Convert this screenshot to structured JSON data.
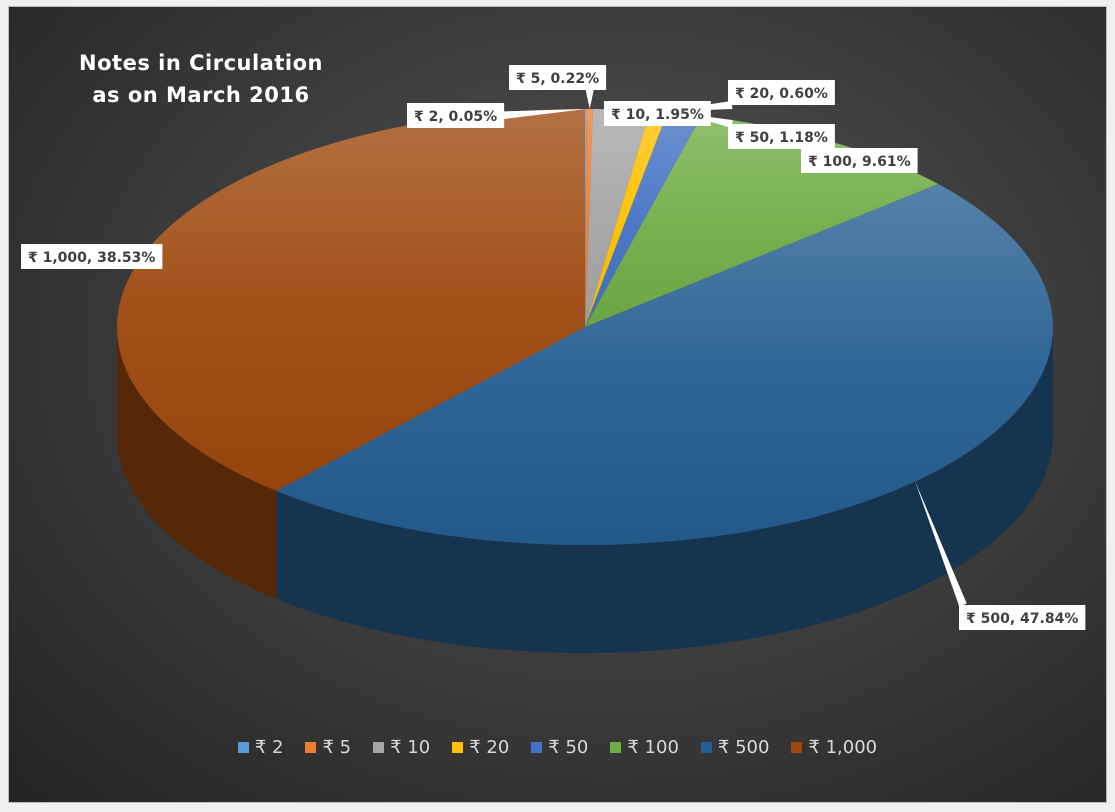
{
  "chart_data": {
    "type": "pie",
    "title_lines": [
      "Notes in Circulation",
      "as on March 2016"
    ],
    "legend_position": "bottom",
    "slices": [
      {
        "name": "₹ 2",
        "value": 0.05,
        "label": "₹ 2, 0.05%",
        "color": "#5b9bd5"
      },
      {
        "name": "₹ 5",
        "value": 0.22,
        "label": "₹ 5, 0.22%",
        "color": "#ed7d31"
      },
      {
        "name": "₹ 10",
        "value": 1.95,
        "label": "₹ 10, 1.95%",
        "color": "#a5a5a5"
      },
      {
        "name": "₹ 20",
        "value": 0.6,
        "label": "₹ 20, 0.60%",
        "color": "#ffc000"
      },
      {
        "name": "₹ 50",
        "value": 1.18,
        "label": "₹ 50, 1.18%",
        "color": "#4472c4"
      },
      {
        "name": "₹ 100",
        "value": 9.61,
        "label": "₹ 100, 9.61%",
        "color": "#70ad47"
      },
      {
        "name": "₹ 500",
        "value": 47.84,
        "label": "₹ 500, 47.84%",
        "color": "#255e91"
      },
      {
        "name": "₹ 1,000",
        "value": 38.53,
        "label": "₹ 1,000, 38.53%",
        "color": "#9e480e"
      }
    ]
  }
}
